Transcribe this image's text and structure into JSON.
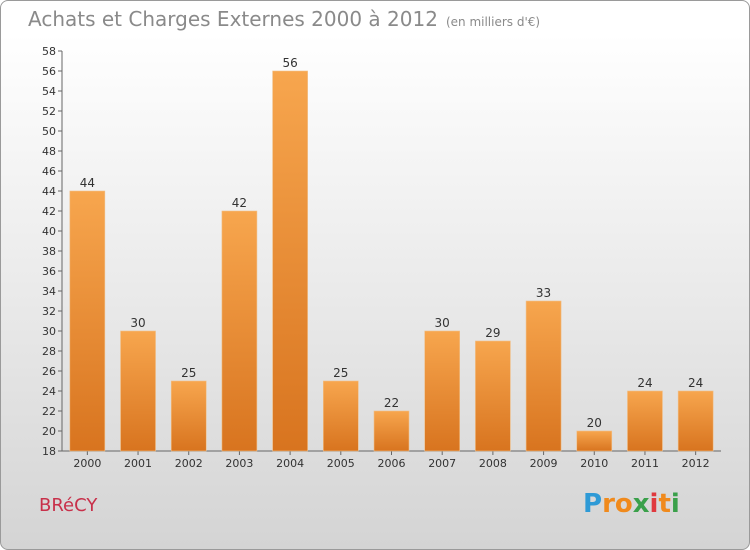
{
  "chart_data": {
    "type": "bar",
    "title": "Achats et Charges Externes 2000 à 2012",
    "subtitle": "(en milliers d'€)",
    "categories": [
      "2000",
      "2001",
      "2002",
      "2003",
      "2004",
      "2005",
      "2006",
      "2007",
      "2008",
      "2009",
      "2010",
      "2011",
      "2012"
    ],
    "values": [
      44,
      30,
      25,
      42,
      56,
      25,
      22,
      30,
      29,
      33,
      20,
      24,
      24
    ],
    "ylim": [
      18,
      58
    ],
    "yticks": [
      18,
      20,
      22,
      24,
      26,
      28,
      30,
      32,
      34,
      36,
      38,
      40,
      42,
      44,
      46,
      48,
      50,
      52,
      54,
      56,
      58
    ],
    "grid": false,
    "bar_color_top": "#f7a64e",
    "bar_color_bottom": "#d8741f"
  },
  "town": "BRéCY",
  "logo": {
    "letters": [
      "P",
      "r",
      "o",
      "x",
      "i",
      "t",
      "i"
    ],
    "colors": [
      "#2e9ad6",
      "#f08a1c",
      "#f08a1c",
      "#3aa04a",
      "#e0393e",
      "#f08a1c",
      "#3aa04a"
    ]
  }
}
